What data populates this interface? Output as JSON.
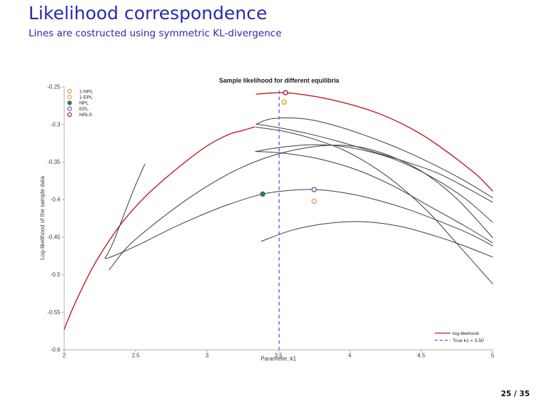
{
  "slide": {
    "title": "Likelihood correspondence",
    "subtitle": "Lines are costructed using symmetric KL-divergence",
    "page_indicator": "25 / 35",
    "accent_color": "#2929ae"
  },
  "chart_data": {
    "type": "line",
    "title": "Sample likelihood for different equilibria",
    "xlabel": "Parameter, k1",
    "ylabel": "Log-likelihood of the sample data",
    "axes": {
      "xlim": [
        2,
        5
      ],
      "ylim": [
        -0.6,
        -0.25
      ],
      "xticks": {
        "values": [
          2,
          2.5,
          3,
          3.5,
          4,
          4.5,
          5
        ],
        "labels": [
          "2",
          "2.5",
          "3",
          "3.5",
          "4",
          "4.5",
          "5"
        ]
      },
      "yticks": {
        "values": [
          -0.25,
          -0.3,
          -0.35,
          -0.4,
          -0.45,
          -0.5,
          -0.55,
          -0.6
        ],
        "labels": [
          "-0.25",
          "-0.3",
          "-0.35",
          "-0.4",
          "-0.45",
          "-0.5",
          "-0.55",
          "-0.6"
        ]
      },
      "grid": false,
      "spine_color": "#b3b3b3"
    },
    "colors": {
      "likelihood_line": "#bf2026",
      "equilibrium_line": "#3c3c3c",
      "true_k1_line": "#5356e8",
      "marker_1npl": "#dda022",
      "marker_1epl": "#ef9f56",
      "marker_npl": "#2b7d4f",
      "marker_epl": "#7a4fae",
      "marker_nrls": "#9c1f1f"
    },
    "vline": {
      "x": 3.505,
      "y_top": -0.2545,
      "y_bottom": -0.6,
      "style": "dashed",
      "label": "True k1 = 3.50"
    },
    "series": [
      {
        "name": "log-likelihood-rising-branch",
        "color": "#bf2026",
        "width": 1.4,
        "points": [
          [
            2.0,
            -0.5725
          ],
          [
            2.05,
            -0.549
          ],
          [
            2.12,
            -0.52
          ],
          [
            2.2,
            -0.49
          ],
          [
            2.3,
            -0.459
          ],
          [
            2.42,
            -0.427
          ],
          [
            2.56,
            -0.3975
          ],
          [
            2.7,
            -0.373
          ],
          [
            2.85,
            -0.3495
          ],
          [
            3.0,
            -0.3285
          ],
          [
            3.15,
            -0.3135
          ],
          [
            3.25,
            -0.308
          ],
          [
            3.335,
            -0.3032
          ]
        ]
      },
      {
        "name": "log-likelihood-top-branch",
        "color": "#bf2026",
        "width": 1.4,
        "points": [
          [
            3.345,
            -0.2597
          ],
          [
            3.44,
            -0.2582
          ],
          [
            3.525,
            -0.2577
          ],
          [
            3.62,
            -0.2589
          ],
          [
            3.75,
            -0.2625
          ],
          [
            3.9,
            -0.2683
          ],
          [
            4.05,
            -0.2758
          ],
          [
            4.2,
            -0.2852
          ],
          [
            4.35,
            -0.2975
          ],
          [
            4.5,
            -0.313
          ],
          [
            4.65,
            -0.332
          ],
          [
            4.8,
            -0.3535
          ],
          [
            4.9,
            -0.369
          ],
          [
            5.0,
            -0.3885
          ]
        ]
      },
      {
        "name": "equilibrium-branch-fold-upper",
        "color": "#3c3c3c",
        "width": 1,
        "points": [
          [
            3.345,
            -0.2995
          ],
          [
            3.43,
            -0.2932
          ],
          [
            3.55,
            -0.2912
          ],
          [
            3.68,
            -0.2925
          ],
          [
            3.82,
            -0.2975
          ],
          [
            4.0,
            -0.3075
          ],
          [
            4.2,
            -0.321
          ],
          [
            4.4,
            -0.3365
          ],
          [
            4.6,
            -0.3545
          ],
          [
            4.8,
            -0.3745
          ],
          [
            5.0,
            -0.3975
          ]
        ]
      },
      {
        "name": "equilibrium-branch-fold-lower",
        "color": "#3c3c3c",
        "width": 1,
        "points": [
          [
            3.345,
            -0.2995
          ],
          [
            3.5,
            -0.3042
          ],
          [
            3.7,
            -0.3118
          ],
          [
            3.9,
            -0.3215
          ],
          [
            4.1,
            -0.3325
          ],
          [
            4.35,
            -0.347
          ],
          [
            4.6,
            -0.3635
          ],
          [
            4.8,
            -0.3825
          ],
          [
            5.0,
            -0.4035
          ]
        ]
      },
      {
        "name": "equilibrium-branch-steep",
        "color": "#3c3c3c",
        "width": 1,
        "points": [
          [
            3.345,
            -0.3035
          ],
          [
            3.55,
            -0.3095
          ],
          [
            3.75,
            -0.3195
          ],
          [
            3.95,
            -0.3335
          ],
          [
            4.15,
            -0.3545
          ],
          [
            4.35,
            -0.382
          ],
          [
            4.55,
            -0.4165
          ],
          [
            4.75,
            -0.4585
          ],
          [
            5.0,
            -0.512
          ]
        ]
      },
      {
        "name": "equilibrium-branch-middle-arc",
        "color": "#3c3c3c",
        "width": 1,
        "points": [
          [
            2.315,
            -0.4935
          ],
          [
            2.45,
            -0.4615
          ],
          [
            2.65,
            -0.4295
          ],
          [
            2.85,
            -0.401
          ],
          [
            3.05,
            -0.3765
          ],
          [
            3.25,
            -0.3565
          ],
          [
            3.45,
            -0.342
          ],
          [
            3.65,
            -0.3325
          ],
          [
            3.85,
            -0.3278
          ],
          [
            4.05,
            -0.3295
          ],
          [
            4.25,
            -0.3395
          ],
          [
            4.5,
            -0.362
          ],
          [
            4.75,
            -0.399
          ],
          [
            5.0,
            -0.4505
          ]
        ]
      },
      {
        "name": "equilibrium-branch-middle-lens-upper",
        "color": "#3c3c3c",
        "width": 1,
        "points": [
          [
            3.34,
            -0.3358
          ],
          [
            3.5,
            -0.3308
          ],
          [
            3.7,
            -0.3272
          ],
          [
            3.9,
            -0.3282
          ],
          [
            4.1,
            -0.3345
          ],
          [
            4.3,
            -0.3455
          ],
          [
            4.55,
            -0.3675
          ],
          [
            4.8,
            -0.3975
          ],
          [
            5.0,
            -0.4302
          ]
        ]
      },
      {
        "name": "equilibrium-branch-middle-lens-lower",
        "color": "#3c3c3c",
        "width": 1,
        "points": [
          [
            3.34,
            -0.3358
          ],
          [
            3.55,
            -0.3385
          ],
          [
            3.8,
            -0.3465
          ],
          [
            4.05,
            -0.3605
          ],
          [
            4.3,
            -0.3815
          ],
          [
            4.55,
            -0.408
          ],
          [
            4.8,
            -0.4345
          ],
          [
            5.0,
            -0.4575
          ]
        ]
      },
      {
        "name": "equilibrium-branch-hook-npl-epl",
        "color": "#3c3c3c",
        "width": 1,
        "points": [
          [
            2.565,
            -0.3525
          ],
          [
            2.49,
            -0.385
          ],
          [
            2.41,
            -0.424
          ],
          [
            2.345,
            -0.456
          ],
          [
            2.3,
            -0.4735
          ],
          [
            2.285,
            -0.478
          ],
          [
            2.31,
            -0.4775
          ],
          [
            2.4,
            -0.4705
          ],
          [
            2.55,
            -0.4575
          ],
          [
            2.75,
            -0.4385
          ],
          [
            2.95,
            -0.4215
          ],
          [
            3.15,
            -0.4065
          ],
          [
            3.39,
            -0.3926
          ],
          [
            3.58,
            -0.3878
          ],
          [
            3.75,
            -0.3866
          ],
          [
            3.95,
            -0.3906
          ],
          [
            4.15,
            -0.3985
          ],
          [
            4.4,
            -0.4125
          ],
          [
            4.65,
            -0.4305
          ],
          [
            4.85,
            -0.4465
          ],
          [
            5.0,
            -0.4615
          ]
        ]
      },
      {
        "name": "equilibrium-branch-low-arc",
        "color": "#3c3c3c",
        "width": 1,
        "points": [
          [
            3.38,
            -0.4555
          ],
          [
            3.6,
            -0.4405
          ],
          [
            3.85,
            -0.4315
          ],
          [
            4.1,
            -0.4295
          ],
          [
            4.35,
            -0.4355
          ],
          [
            4.6,
            -0.4485
          ],
          [
            4.8,
            -0.4615
          ],
          [
            5.0,
            -0.4765
          ]
        ]
      }
    ],
    "markers": [
      {
        "name": "NRLS",
        "x": 3.55,
        "y": -0.2576,
        "color": "#9c1f1f",
        "filled": false
      },
      {
        "name": "1-NPL",
        "x": 3.54,
        "y": -0.2702,
        "color": "#dda022",
        "filled": false
      },
      {
        "name": "NPL",
        "x": 3.39,
        "y": -0.3926,
        "color": "#2b7d4f",
        "filled": true
      },
      {
        "name": "EPL",
        "x": 3.75,
        "y": -0.3866,
        "color": "#7a4fae",
        "filled": false
      },
      {
        "name": "1-EPL",
        "x": 3.75,
        "y": -0.4021,
        "color": "#ef9f56",
        "filled": false
      }
    ],
    "legend_equilibria": {
      "position": "top-left",
      "items": [
        {
          "label": "1-NPL",
          "color": "#dda022",
          "filled": false
        },
        {
          "label": "1-EPL",
          "color": "#ef9f56",
          "filled": false
        },
        {
          "label": "NPL",
          "color": "#2b7d4f",
          "filled": true
        },
        {
          "label": "EPL",
          "color": "#7a4fae",
          "filled": false
        },
        {
          "label": "NRLS",
          "color": "#9c1f1f",
          "filled": false
        }
      ]
    },
    "legend_lines": {
      "position": "bottom-right",
      "items": [
        {
          "label": "log-likehood",
          "color": "#bf2026",
          "style": "solid"
        },
        {
          "label": "True k1 = 3.50",
          "color": "#5356e8",
          "style": "dashed"
        }
      ]
    }
  }
}
